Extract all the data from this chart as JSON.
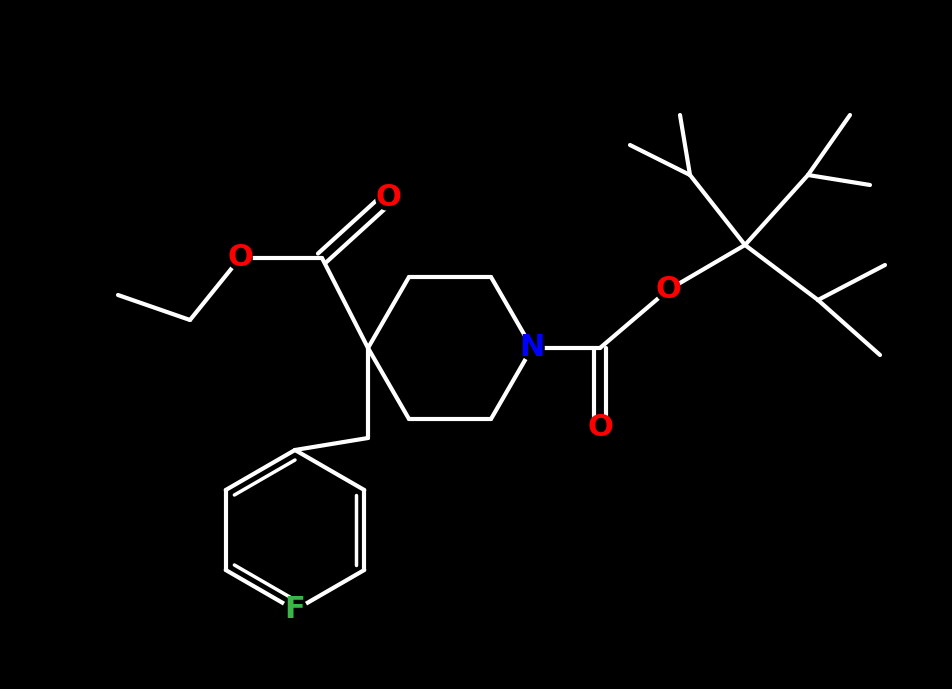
{
  "background_color": "#000000",
  "bond_color": "#ffffff",
  "atom_colors": {
    "O": "#ff0000",
    "N": "#0000ff",
    "F": "#39b54a",
    "C": "#ffffff"
  },
  "bond_width": 3.0,
  "figsize": [
    9.52,
    6.89
  ],
  "dpi": 100,
  "xlim": [
    0,
    952
  ],
  "ylim": [
    0,
    689
  ]
}
